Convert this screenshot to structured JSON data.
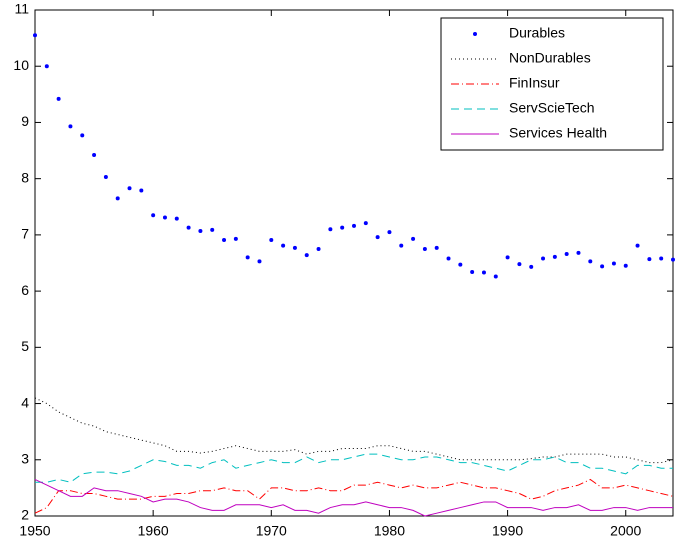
{
  "chart_data": {
    "type": "line",
    "x": [
      1950,
      1951,
      1952,
      1953,
      1954,
      1955,
      1956,
      1957,
      1958,
      1959,
      1960,
      1961,
      1962,
      1963,
      1964,
      1965,
      1966,
      1967,
      1968,
      1969,
      1970,
      1971,
      1972,
      1973,
      1974,
      1975,
      1976,
      1977,
      1978,
      1979,
      1980,
      1981,
      1982,
      1983,
      1984,
      1985,
      1986,
      1987,
      1988,
      1989,
      1990,
      1991,
      1992,
      1993,
      1994,
      1995,
      1996,
      1997,
      1998,
      1999,
      2000,
      2001,
      2002,
      2003,
      2004
    ],
    "series": [
      {
        "name": "Durables",
        "color": "#0000ff",
        "linestyle": "none",
        "marker": ".",
        "values": [
          10.55,
          10.0,
          9.42,
          8.93,
          8.77,
          8.42,
          8.03,
          7.65,
          7.83,
          7.79,
          7.35,
          7.31,
          7.29,
          7.13,
          7.07,
          7.09,
          6.91,
          6.93,
          6.6,
          6.53,
          6.91,
          6.81,
          6.77,
          6.64,
          6.75,
          7.1,
          7.13,
          7.16,
          7.21,
          6.96,
          7.05,
          6.81,
          6.93,
          6.75,
          6.77,
          6.58,
          6.47,
          6.34,
          6.33,
          6.26,
          6.6,
          6.48,
          6.43,
          6.58,
          6.61,
          6.66,
          6.68,
          6.53,
          6.44,
          6.49,
          6.45,
          6.81,
          6.57,
          6.58,
          6.56
        ]
      },
      {
        "name": "NonDurables",
        "color": "#000000",
        "linestyle": ":",
        "marker": "none",
        "values": [
          4.1,
          4.0,
          3.85,
          3.75,
          3.65,
          3.6,
          3.5,
          3.45,
          3.4,
          3.35,
          3.3,
          3.25,
          3.15,
          3.15,
          3.12,
          3.15,
          3.2,
          3.25,
          3.2,
          3.15,
          3.15,
          3.15,
          3.18,
          3.1,
          3.15,
          3.15,
          3.2,
          3.2,
          3.2,
          3.25,
          3.25,
          3.2,
          3.15,
          3.15,
          3.1,
          3.05,
          3.0,
          3.0,
          3.0,
          3.0,
          3.0,
          3.0,
          3.02,
          3.05,
          3.05,
          3.1,
          3.1,
          3.1,
          3.1,
          3.05,
          3.05,
          3.0,
          2.95,
          2.95,
          3.0
        ]
      },
      {
        "name": "FinInsur",
        "color": "#ff0000",
        "linestyle": "-.",
        "marker": "none",
        "values": [
          2.05,
          2.15,
          2.45,
          2.45,
          2.4,
          2.4,
          2.35,
          2.3,
          2.3,
          2.3,
          2.35,
          2.35,
          2.4,
          2.4,
          2.45,
          2.45,
          2.5,
          2.45,
          2.45,
          2.3,
          2.5,
          2.5,
          2.45,
          2.45,
          2.5,
          2.45,
          2.45,
          2.55,
          2.55,
          2.6,
          2.55,
          2.5,
          2.55,
          2.5,
          2.5,
          2.55,
          2.6,
          2.55,
          2.5,
          2.5,
          2.45,
          2.4,
          2.3,
          2.35,
          2.45,
          2.5,
          2.55,
          2.65,
          2.5,
          2.5,
          2.55,
          2.5,
          2.45,
          2.4,
          2.35
        ]
      },
      {
        "name": "ServScieTech",
        "color": "#00bfbf",
        "linestyle": "--",
        "marker": "none",
        "values": [
          2.6,
          2.6,
          2.65,
          2.6,
          2.75,
          2.78,
          2.78,
          2.75,
          2.8,
          2.9,
          3.0,
          2.97,
          2.9,
          2.9,
          2.85,
          2.95,
          3.0,
          2.85,
          2.9,
          2.95,
          3.0,
          2.95,
          2.95,
          3.05,
          2.95,
          3.0,
          3.0,
          3.05,
          3.1,
          3.1,
          3.05,
          3.0,
          3.0,
          3.05,
          3.05,
          3.0,
          2.95,
          2.95,
          2.9,
          2.85,
          2.8,
          2.9,
          3.0,
          3.0,
          3.05,
          2.95,
          2.95,
          2.85,
          2.85,
          2.8,
          2.75,
          2.9,
          2.9,
          2.85,
          2.85
        ]
      },
      {
        "name": "Services Health",
        "color": "#bf00bf",
        "linestyle": "-",
        "marker": "none",
        "values": [
          2.65,
          2.55,
          2.45,
          2.35,
          2.35,
          2.5,
          2.45,
          2.45,
          2.4,
          2.35,
          2.25,
          2.3,
          2.3,
          2.25,
          2.15,
          2.1,
          2.1,
          2.2,
          2.2,
          2.2,
          2.15,
          2.2,
          2.1,
          2.1,
          2.05,
          2.15,
          2.2,
          2.2,
          2.25,
          2.2,
          2.15,
          2.15,
          2.1,
          2.0,
          2.05,
          2.1,
          2.15,
          2.2,
          2.25,
          2.25,
          2.15,
          2.15,
          2.15,
          2.1,
          2.15,
          2.15,
          2.2,
          2.1,
          2.1,
          2.15,
          2.15,
          2.1,
          2.15,
          2.15,
          2.15
        ]
      }
    ],
    "xlim": [
      1950,
      2004
    ],
    "xticks": [
      1950,
      1960,
      1970,
      1980,
      1990,
      2000
    ],
    "ylim": [
      2,
      11
    ],
    "yticks": [
      2,
      3,
      4,
      5,
      6,
      7,
      8,
      9,
      10,
      11
    ],
    "grid": false,
    "legend": "northeast"
  }
}
